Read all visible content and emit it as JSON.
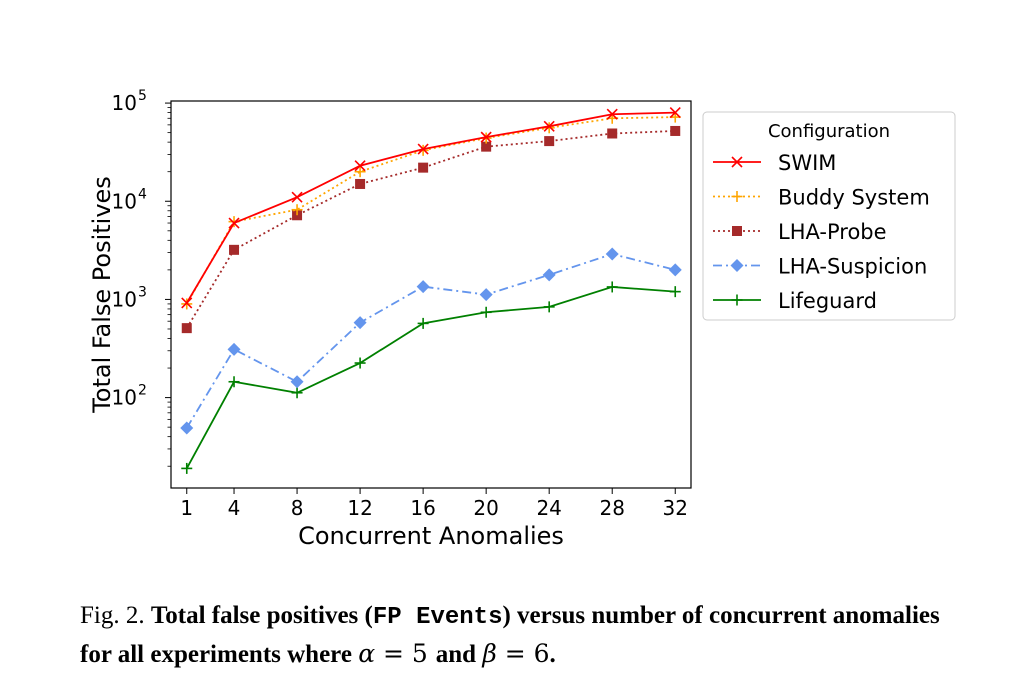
{
  "chart_data": {
    "type": "line",
    "xlabel": "Concurrent Anomalies",
    "ylabel": "Total False Positives",
    "yscale": "log",
    "x": [
      1,
      4,
      8,
      12,
      16,
      20,
      24,
      28,
      32
    ],
    "xticks": [
      "1",
      "4",
      "8",
      "12",
      "16",
      "20",
      "24",
      "28",
      "32"
    ],
    "yticks": [
      {
        "base": "10",
        "exp": "2",
        "value": 100
      },
      {
        "base": "10",
        "exp": "3",
        "value": 1000
      },
      {
        "base": "10",
        "exp": "4",
        "value": 10000
      },
      {
        "base": "10",
        "exp": "5",
        "value": 100000
      }
    ],
    "ylim": [
      12,
      105000
    ],
    "xlim": [
      0,
      33
    ],
    "grid": false,
    "legend": {
      "title": "Configuration",
      "placement": "outside-right"
    },
    "series": [
      {
        "name": "SWIM",
        "color": "#ff0000",
        "marker": "x",
        "dash": "solid",
        "values": [
          920,
          6000,
          11000,
          23000,
          34000,
          45000,
          58000,
          77000,
          80000
        ]
      },
      {
        "name": "Buddy System",
        "color": "#ffa500",
        "marker": "+",
        "dash": "dotted",
        "values": [
          900,
          6200,
          8200,
          20000,
          33000,
          44000,
          56000,
          70000,
          72000
        ]
      },
      {
        "name": "LHA-Probe",
        "color": "#a52a2a",
        "marker": "square",
        "dash": "dotted",
        "values": [
          510,
          3200,
          7200,
          15000,
          22000,
          36000,
          41000,
          49000,
          52000
        ]
      },
      {
        "name": "LHA-Suspicion",
        "color": "#6495ed",
        "marker": "diamond",
        "dash": "dashdot",
        "values": [
          49,
          310,
          145,
          580,
          1350,
          1120,
          1780,
          2900,
          2000
        ]
      },
      {
        "name": "Lifeguard",
        "color": "#008000",
        "marker": "+",
        "dash": "solid",
        "values": [
          19,
          145,
          112,
          225,
          570,
          740,
          840,
          1340,
          1200
        ]
      }
    ]
  },
  "caption": {
    "label": "Fig. 2.",
    "text_1": "Total false positives (",
    "code": "FP Events",
    "text_2": ") versus number of concurrent anomalies for all experiments where ",
    "alpha": "α",
    "eq1": " = 5 ",
    "and": "and",
    "beta": "β",
    "eq2": " = 6",
    "end": "."
  }
}
